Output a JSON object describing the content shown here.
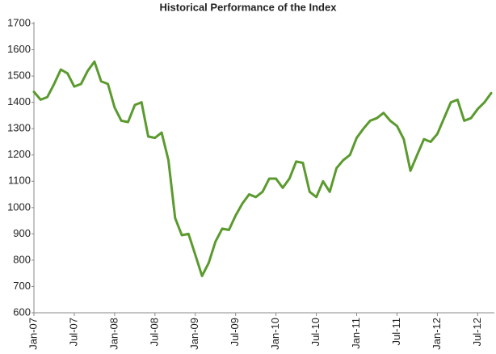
{
  "chart_data": {
    "type": "line",
    "title": "Historical Performance of the Index",
    "categories": [
      "Jan-07",
      null,
      null,
      null,
      null,
      null,
      "Jul-07",
      null,
      null,
      null,
      null,
      null,
      "Jan-08",
      null,
      null,
      null,
      null,
      null,
      "Jul-08",
      null,
      null,
      null,
      null,
      null,
      "Jan-09",
      null,
      null,
      null,
      null,
      null,
      "Jul-09",
      null,
      null,
      null,
      null,
      null,
      "Jan-10",
      null,
      null,
      null,
      null,
      null,
      "Jul-10",
      null,
      null,
      null,
      null,
      null,
      "Jan-11",
      null,
      null,
      null,
      null,
      null,
      "Jul-11",
      null,
      null,
      null,
      null,
      null,
      "Jan-12",
      null,
      null,
      null,
      null,
      null,
      "Jul-12",
      null,
      null
    ],
    "series": [
      {
        "color": "#5b9a2e",
        "values": [
          1440,
          1410,
          1420,
          1470,
          1525,
          1510,
          1460,
          1470,
          1520,
          1555,
          1480,
          1470,
          1380,
          1330,
          1325,
          1390,
          1400,
          1270,
          1265,
          1285,
          1180,
          960,
          895,
          900,
          820,
          740,
          790,
          870,
          920,
          915,
          970,
          1015,
          1050,
          1040,
          1060,
          1110,
          1110,
          1075,
          1110,
          1175,
          1170,
          1060,
          1040,
          1100,
          1060,
          1150,
          1180,
          1200,
          1265,
          1300,
          1330,
          1340,
          1360,
          1330,
          1310,
          1260,
          1140,
          1200,
          1260,
          1250,
          1280,
          1340,
          1400,
          1410,
          1330,
          1340,
          1375,
          1400,
          1435
        ]
      }
    ],
    "ylim": [
      600,
      1700
    ],
    "yticks": [
      600,
      700,
      800,
      900,
      1000,
      1100,
      1200,
      1300,
      1400,
      1500,
      1600,
      1700
    ],
    "grid": false
  }
}
